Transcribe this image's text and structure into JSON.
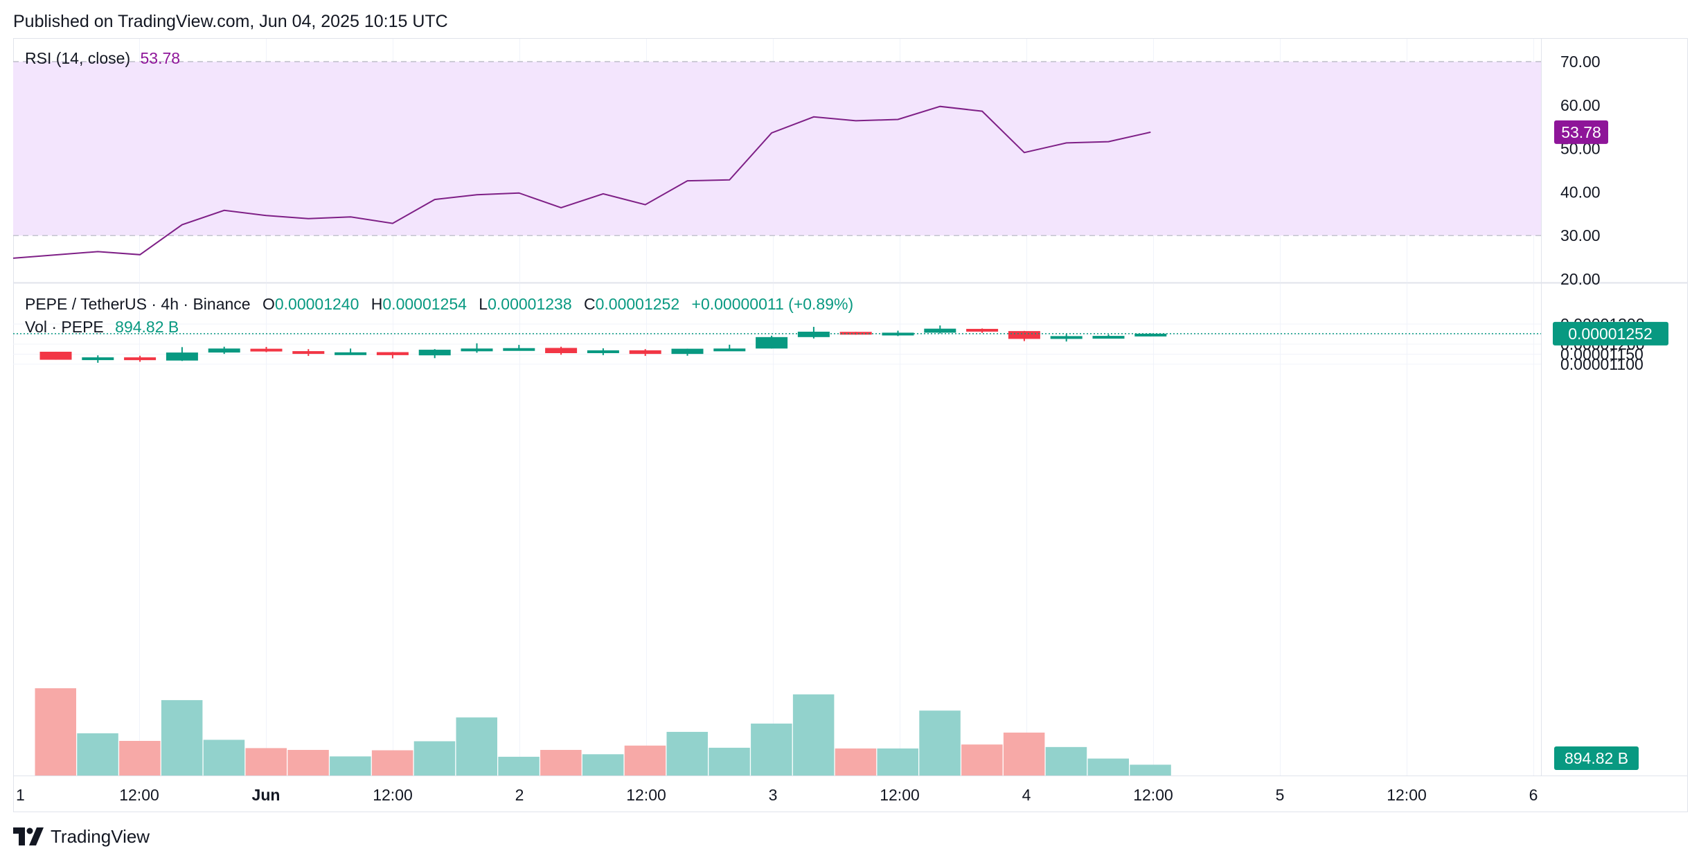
{
  "header": {
    "published": "Published on TradingView.com, Jun 04, 2025 10:15 UTC"
  },
  "footer": {
    "brand": "TradingView",
    "logo_icon": "tradingview-logo-icon"
  },
  "colors": {
    "up": "#089981",
    "down": "#f23645",
    "volume_up": "#92d2cc",
    "volume_down": "#f7a9a7",
    "rsi_line": "#7e1f86",
    "rsi_band": "#f3e5fd",
    "rsi_label": "#8e1599",
    "last_price_line": "#089981",
    "grid": "#f0f3fa",
    "axis_text": "#131722"
  },
  "panes": {
    "rsi": {
      "legend_name": "RSI (14, close)",
      "legend_value": "53.78",
      "axis_ticks": [
        "70.00",
        "60.00",
        "50.00",
        "40.00",
        "30.00",
        "20.00"
      ],
      "price_tag": "53.78"
    },
    "price": {
      "pair": "PEPE / TetherUS · 4h · Binance",
      "o_label": "O",
      "o_value": "0.00001240",
      "h_label": "H",
      "h_value": "0.00001254",
      "l_label": "L",
      "l_value": "0.00001238",
      "c_label": "C",
      "c_value": "0.00001252",
      "change": "+0.00000011 (+0.89%)",
      "vol_label": "Vol · PEPE",
      "vol_value": "894.82 B",
      "axis_ticks": [
        "0.00001300",
        "0.00001250",
        "0.00001200",
        "0.00001150",
        "0.00001100"
      ],
      "last_price_tag": "0.00001252",
      "volume_tag": "894.82 B"
    }
  },
  "time_axis": {
    "labels": [
      "1",
      "12:00",
      "Jun",
      "12:00",
      "2",
      "12:00",
      "3",
      "12:00",
      "4",
      "12:00",
      "5",
      "12:00",
      "6"
    ]
  },
  "chart_data": [
    {
      "type": "candlestick",
      "title": "PEPE / TetherUS · 4h · Binance",
      "interval": "4h",
      "ylim": [
        1.08e-05,
        1.33e-05
      ],
      "last_price": 1.252e-05,
      "candles": [
        {
          "o": 1.162e-05,
          "h": 1.162e-05,
          "l": 1.122e-05,
          "c": 1.122e-05
        },
        {
          "o": 1.121e-05,
          "h": 1.144e-05,
          "l": 1.107e-05,
          "c": 1.134e-05
        },
        {
          "o": 1.134e-05,
          "h": 1.142e-05,
          "l": 1.112e-05,
          "c": 1.12e-05
        },
        {
          "o": 1.118e-05,
          "h": 1.185e-05,
          "l": 1.116e-05,
          "c": 1.158e-05
        },
        {
          "o": 1.158e-05,
          "h": 1.187e-05,
          "l": 1.151e-05,
          "c": 1.178e-05
        },
        {
          "o": 1.177e-05,
          "h": 1.186e-05,
          "l": 1.16e-05,
          "c": 1.165e-05
        },
        {
          "o": 1.165e-05,
          "h": 1.175e-05,
          "l": 1.141e-05,
          "c": 1.158e-05
        },
        {
          "o": 1.156e-05,
          "h": 1.178e-05,
          "l": 1.15e-05,
          "c": 1.159e-05
        },
        {
          "o": 1.16e-05,
          "h": 1.161e-05,
          "l": 1.129e-05,
          "c": 1.145e-05
        },
        {
          "o": 1.144e-05,
          "h": 1.175e-05,
          "l": 1.13e-05,
          "c": 1.172e-05
        },
        {
          "o": 1.171e-05,
          "h": 1.204e-05,
          "l": 1.157e-05,
          "c": 1.178e-05
        },
        {
          "o": 1.178e-05,
          "h": 1.196e-05,
          "l": 1.168e-05,
          "c": 1.18e-05
        },
        {
          "o": 1.181e-05,
          "h": 1.187e-05,
          "l": 1.147e-05,
          "c": 1.155e-05
        },
        {
          "o": 1.155e-05,
          "h": 1.179e-05,
          "l": 1.145e-05,
          "c": 1.169e-05
        },
        {
          "o": 1.169e-05,
          "h": 1.175e-05,
          "l": 1.141e-05,
          "c": 1.151e-05
        },
        {
          "o": 1.151e-05,
          "h": 1.177e-05,
          "l": 1.142e-05,
          "c": 1.177e-05
        },
        {
          "o": 1.178e-05,
          "h": 1.197e-05,
          "l": 1.167e-05,
          "c": 1.178e-05
        },
        {
          "o": 1.178e-05,
          "h": 1.242e-05,
          "l": 1.178e-05,
          "c": 1.235e-05
        },
        {
          "o": 1.235e-05,
          "h": 1.286e-05,
          "l": 1.228e-05,
          "c": 1.262e-05
        },
        {
          "o": 1.261e-05,
          "h": 1.261e-05,
          "l": 1.247e-05,
          "c": 1.254e-05
        },
        {
          "o": 1.253e-05,
          "h": 1.267e-05,
          "l": 1.24e-05,
          "c": 1.257e-05
        },
        {
          "o": 1.257e-05,
          "h": 1.293e-05,
          "l": 1.253e-05,
          "c": 1.277e-05
        },
        {
          "o": 1.276e-05,
          "h": 1.278e-05,
          "l": 1.256e-05,
          "c": 1.266e-05
        },
        {
          "o": 1.265e-05,
          "h": 1.266e-05,
          "l": 1.215e-05,
          "c": 1.226e-05
        },
        {
          "o": 1.226e-05,
          "h": 1.25e-05,
          "l": 1.213e-05,
          "c": 1.24e-05
        },
        {
          "o": 1.239e-05,
          "h": 1.248e-05,
          "l": 1.236e-05,
          "c": 1.241e-05
        },
        {
          "o": 1.24e-05,
          "h": 1.254e-05,
          "l": 1.238e-05,
          "c": 1.252e-05
        }
      ],
      "volume": [
        1210,
        585,
        480,
        1045,
        495,
        380,
        355,
        265,
        350,
        475,
        805,
        260,
        355,
        295,
        415,
        605,
        385,
        720,
        1125,
        375,
        375,
        900,
        430,
        595,
        395,
        235,
        150
      ],
      "volume_ylim": [
        0,
        2930
      ],
      "volume_last": "894.82 B",
      "xlabels": [
        "1",
        "12:00",
        "Jun",
        "12:00",
        "2",
        "12:00",
        "3",
        "12:00",
        "4",
        "12:00",
        "5",
        "12:00",
        "6"
      ]
    },
    {
      "type": "line",
      "title": "RSI (14, close)",
      "ylim": [
        20,
        70
      ],
      "band": [
        30,
        70
      ],
      "grid": true,
      "values": [
        24.8,
        26.3,
        25.6,
        32.5,
        35.8,
        34.6,
        33.9,
        34.3,
        32.8,
        38.3,
        39.4,
        39.8,
        36.4,
        39.6,
        37.1,
        42.6,
        42.8,
        53.6,
        57.3,
        56.4,
        56.7,
        59.7,
        58.6,
        49.1,
        51.3,
        51.6,
        53.78
      ],
      "last_value": "53.78"
    }
  ]
}
